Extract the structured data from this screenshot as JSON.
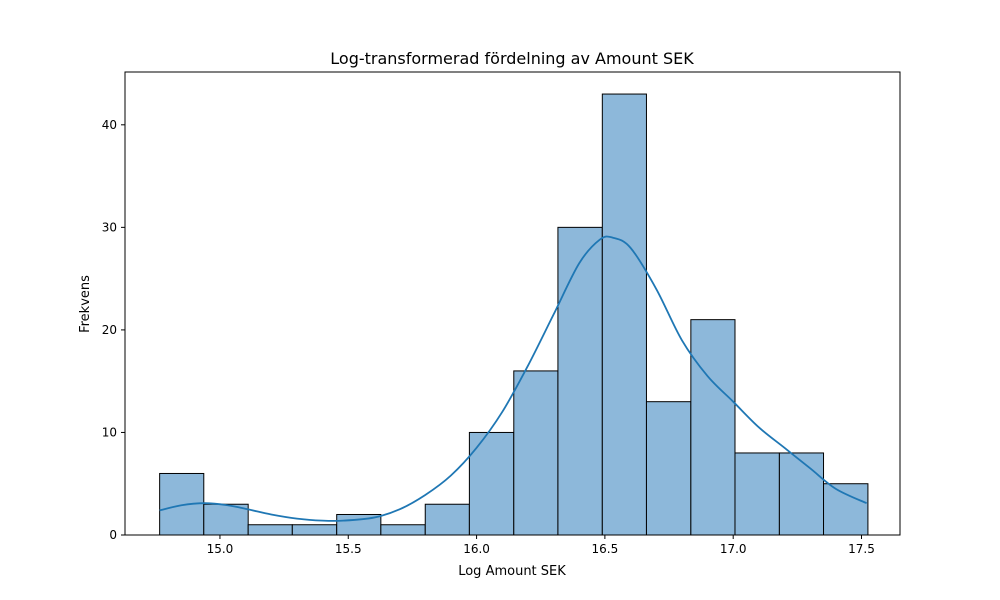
{
  "chart_data": {
    "type": "bar",
    "title": "Log-transformerad fördelning av Amount SEK",
    "xlabel": "Log Amount SEK",
    "ylabel": "Frekvens",
    "xlim": [
      14.63,
      17.65
    ],
    "ylim": [
      0,
      45.15
    ],
    "xticks": [
      15.0,
      15.5,
      16.0,
      16.5,
      17.0,
      17.5
    ],
    "xtick_labels": [
      "15.0",
      "15.5",
      "16.0",
      "16.5",
      "17.0",
      "17.5"
    ],
    "yticks": [
      0,
      10,
      20,
      30,
      40
    ],
    "ytick_labels": [
      "0",
      "10",
      "20",
      "30",
      "40"
    ],
    "grid": false,
    "bin_edges": [
      14.765,
      14.937,
      15.11,
      15.282,
      15.455,
      15.627,
      15.8,
      15.972,
      16.145,
      16.317,
      16.49,
      16.662,
      16.835,
      17.007,
      17.18,
      17.352,
      17.525
    ],
    "counts": [
      6,
      3,
      1,
      1,
      2,
      1,
      3,
      10,
      16,
      30,
      43,
      13,
      21,
      8,
      8,
      5
    ],
    "kde": {
      "x": [
        14.765,
        14.85,
        14.94,
        15.03,
        15.11,
        15.2,
        15.3,
        15.4,
        15.48,
        15.6,
        15.7,
        15.8,
        15.9,
        16.0,
        16.1,
        16.2,
        16.3,
        16.4,
        16.48,
        16.53,
        16.6,
        16.7,
        16.8,
        16.9,
        17.0,
        17.1,
        17.2,
        17.3,
        17.4,
        17.52
      ],
      "y": [
        2.4,
        2.9,
        3.1,
        2.9,
        2.5,
        2.0,
        1.6,
        1.4,
        1.4,
        1.7,
        2.5,
        3.9,
        5.8,
        8.5,
        12.0,
        16.5,
        21.5,
        26.5,
        28.8,
        29.0,
        28.0,
        24.0,
        19.0,
        15.5,
        13.0,
        10.5,
        8.5,
        6.5,
        4.5,
        3.1
      ]
    },
    "colors": {
      "bar_fill": "#8db8da",
      "bar_edge": "#000000",
      "kde_line": "#1f77b4"
    }
  }
}
